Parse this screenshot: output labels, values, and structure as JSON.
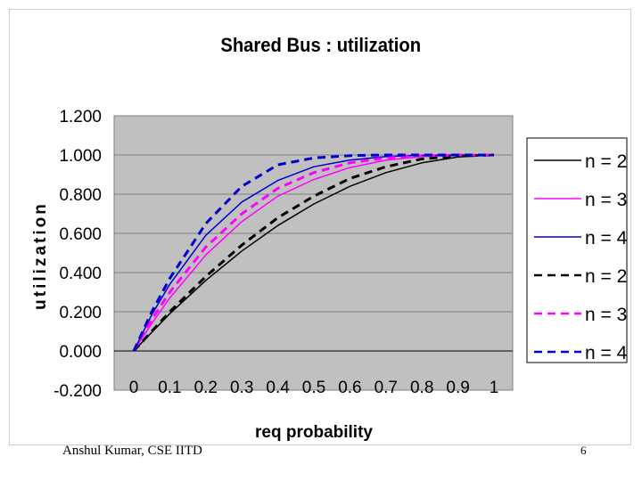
{
  "chart_data": {
    "type": "line",
    "title": "Shared Bus : utilization",
    "xlabel": "req probability",
    "ylabel": "utilization",
    "x": [
      0,
      0.05,
      0.1,
      0.2,
      0.3,
      0.4,
      0.5,
      0.6,
      0.7,
      0.8,
      0.9,
      1
    ],
    "x_ticks": [
      "0",
      "0.1",
      "0.2",
      "0.3",
      "0.4",
      "0.5",
      "0.6",
      "0.7",
      "0.8",
      "0.9",
      "1"
    ],
    "y_ticks": [
      "1.200",
      "1.000",
      "0.800",
      "0.600",
      "0.400",
      "0.200",
      "0.000",
      "-0.200"
    ],
    "xlim": [
      0,
      1
    ],
    "ylim": [
      -0.2,
      1.2
    ],
    "grid": true,
    "legend_position": "right",
    "series": [
      {
        "name": "n = 2",
        "color": "#000000",
        "style": "solid",
        "values": [
          0,
          0.095,
          0.19,
          0.36,
          0.51,
          0.64,
          0.75,
          0.84,
          0.91,
          0.96,
          0.99,
          1.0
        ]
      },
      {
        "name": "n = 3",
        "color": "#ff00ff",
        "style": "solid",
        "values": [
          0,
          0.14,
          0.27,
          0.49,
          0.66,
          0.79,
          0.875,
          0.936,
          0.973,
          0.992,
          0.999,
          1.0
        ]
      },
      {
        "name": "n = 4",
        "color": "#0000cc",
        "style": "solid",
        "values": [
          0,
          0.185,
          0.34,
          0.59,
          0.76,
          0.87,
          0.94,
          0.974,
          0.992,
          0.998,
          1.0,
          1.0
        ]
      },
      {
        "name": "n = 2",
        "color": "#000000",
        "style": "dashed",
        "values": [
          0,
          0.1,
          0.2,
          0.38,
          0.54,
          0.68,
          0.79,
          0.88,
          0.94,
          0.98,
          0.995,
          1.0
        ]
      },
      {
        "name": "n = 3",
        "color": "#ff00ff",
        "style": "dashed",
        "values": [
          0,
          0.16,
          0.3,
          0.53,
          0.7,
          0.83,
          0.91,
          0.96,
          0.985,
          0.996,
          1.0,
          1.0
        ]
      },
      {
        "name": "n = 4",
        "color": "#0000cc",
        "style": "dashed",
        "values": [
          0,
          0.2,
          0.37,
          0.65,
          0.84,
          0.95,
          0.985,
          0.997,
          1.0,
          1.0,
          1.0,
          1.0
        ]
      }
    ]
  },
  "footer": {
    "author": "Anshul Kumar, CSE IITD",
    "page_number": "6"
  }
}
